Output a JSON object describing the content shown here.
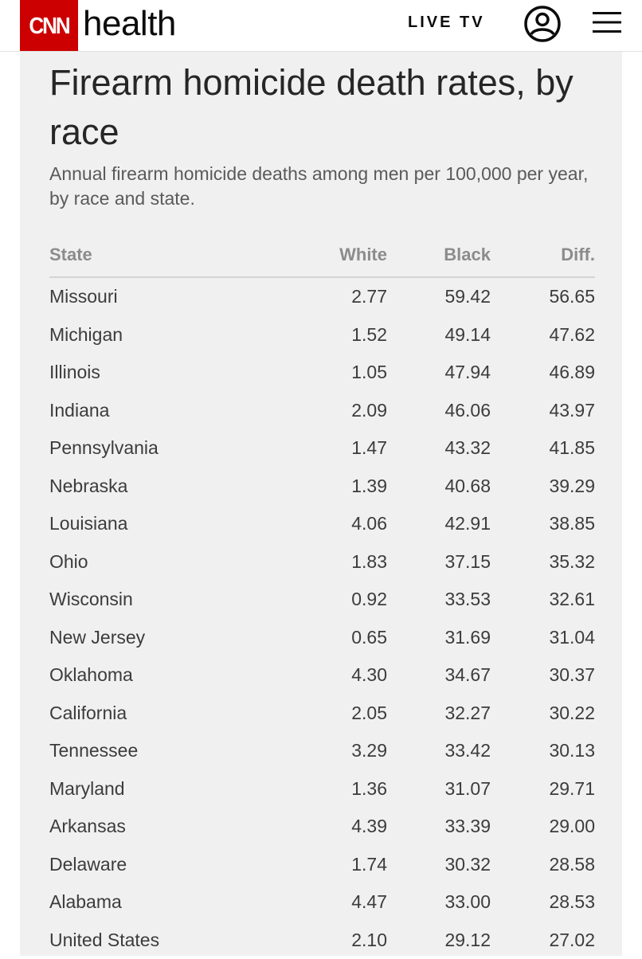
{
  "header": {
    "logo_text": "CNN",
    "section_name": "health",
    "live_tv_label": "LIVE TV",
    "account_icon": "account-circle-icon",
    "menu_icon": "hamburger-menu-icon",
    "brand_color": "#cc0000"
  },
  "article": {
    "title": "Firearm homicide death rates, by race",
    "subtitle": "Annual firearm homicide deaths among men per 100,000 per year, by race and state."
  },
  "table": {
    "columns": [
      "State",
      "White",
      "Black",
      "Diff."
    ],
    "rows": [
      [
        "Missouri",
        "2.77",
        "59.42",
        "56.65"
      ],
      [
        "Michigan",
        "1.52",
        "49.14",
        "47.62"
      ],
      [
        "Illinois",
        "1.05",
        "47.94",
        "46.89"
      ],
      [
        "Indiana",
        "2.09",
        "46.06",
        "43.97"
      ],
      [
        "Pennsylvania",
        "1.47",
        "43.32",
        "41.85"
      ],
      [
        "Nebraska",
        "1.39",
        "40.68",
        "39.29"
      ],
      [
        "Louisiana",
        "4.06",
        "42.91",
        "38.85"
      ],
      [
        "Ohio",
        "1.83",
        "37.15",
        "35.32"
      ],
      [
        "Wisconsin",
        "0.92",
        "33.53",
        "32.61"
      ],
      [
        "New Jersey",
        "0.65",
        "31.69",
        "31.04"
      ],
      [
        "Oklahoma",
        "4.30",
        "34.67",
        "30.37"
      ],
      [
        "California",
        "2.05",
        "32.27",
        "30.22"
      ],
      [
        "Tennessee",
        "3.29",
        "33.42",
        "30.13"
      ],
      [
        "Maryland",
        "1.36",
        "31.07",
        "29.71"
      ],
      [
        "Arkansas",
        "4.39",
        "33.39",
        "29.00"
      ],
      [
        "Delaware",
        "1.74",
        "30.32",
        "28.58"
      ],
      [
        "Alabama",
        "4.47",
        "33.00",
        "28.53"
      ],
      [
        "United States",
        "2.10",
        "29.12",
        "27.02"
      ]
    ]
  }
}
